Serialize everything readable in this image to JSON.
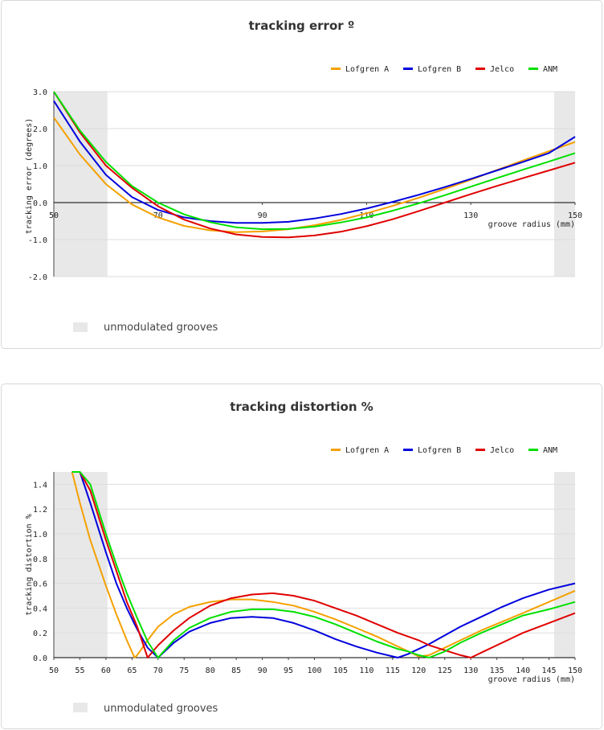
{
  "legend": [
    {
      "label": "Lofgren A",
      "color": "#f5a000"
    },
    {
      "label": "Lofgren B",
      "color": "#0000dd"
    },
    {
      "label": "Jelco",
      "color": "#e00000"
    },
    {
      "label": "ANM",
      "color": "#00e000"
    }
  ],
  "unmodulated_label": "unmodulated grooves",
  "chart_data": [
    {
      "type": "line",
      "title": "tracking error º",
      "xlabel": "groove radius (mm)",
      "ylabel": "tracking error (degrees)",
      "xlim": [
        50,
        150
      ],
      "ylim": [
        -2.0,
        3.0
      ],
      "xticks": [
        50,
        70,
        90,
        110,
        130,
        150
      ],
      "xtick_labels": [
        "50",
        "70",
        "90",
        "110",
        "130",
        "150"
      ],
      "yticks": [
        -2.0,
        -1.0,
        0.0,
        1.0,
        2.0,
        3.0
      ],
      "ytick_labels": [
        "-2.0",
        "-1.0",
        "0.0",
        "1.0",
        "2.0",
        "3.0"
      ],
      "shaded_ranges": [
        [
          50,
          60.3
        ],
        [
          146,
          150
        ]
      ],
      "x": [
        50,
        55,
        60,
        65,
        70,
        75,
        80,
        85,
        90,
        95,
        100,
        105,
        110,
        115,
        120,
        125,
        130,
        135,
        140,
        145,
        150
      ],
      "series": [
        {
          "name": "Lofgren A",
          "color": "#f5a000",
          "values": [
            2.3,
            1.3,
            0.5,
            -0.05,
            -0.4,
            -0.63,
            -0.75,
            -0.8,
            -0.78,
            -0.72,
            -0.61,
            -0.47,
            -0.29,
            -0.09,
            0.13,
            0.37,
            0.62,
            0.88,
            1.14,
            1.39,
            1.64
          ]
        },
        {
          "name": "Lofgren B",
          "color": "#0000dd",
          "values": [
            2.75,
            1.65,
            0.75,
            0.15,
            -0.2,
            -0.4,
            -0.5,
            -0.55,
            -0.55,
            -0.52,
            -0.43,
            -0.31,
            -0.16,
            0.02,
            0.21,
            0.42,
            0.64,
            0.87,
            1.1,
            1.34,
            1.78
          ]
        },
        {
          "name": "Jelco",
          "color": "#e00000",
          "values": [
            3.0,
            1.9,
            1.0,
            0.4,
            -0.1,
            -0.46,
            -0.7,
            -0.86,
            -0.93,
            -0.94,
            -0.89,
            -0.79,
            -0.64,
            -0.45,
            -0.23,
            0.0,
            0.23,
            0.45,
            0.66,
            0.87,
            1.08
          ]
        },
        {
          "name": "ANM",
          "color": "#00e000",
          "values": [
            3.0,
            1.95,
            1.1,
            0.45,
            0.0,
            -0.32,
            -0.53,
            -0.67,
            -0.72,
            -0.71,
            -0.65,
            -0.54,
            -0.4,
            -0.22,
            -0.02,
            0.2,
            0.43,
            0.66,
            0.89,
            1.11,
            1.34
          ]
        }
      ]
    },
    {
      "type": "line",
      "title": "tracking distortion %",
      "xlabel": "groove radius (mm)",
      "ylabel": "tracking distortion %",
      "xlim": [
        50,
        150
      ],
      "ylim": [
        0.0,
        1.5
      ],
      "xticks": [
        50,
        55,
        60,
        65,
        70,
        75,
        80,
        85,
        90,
        95,
        100,
        105,
        110,
        115,
        120,
        125,
        130,
        135,
        140,
        145,
        150
      ],
      "xtick_labels": [
        "50",
        "55",
        "60",
        "65",
        "70",
        "75",
        "80",
        "85",
        "90",
        "95",
        "100",
        "105",
        "110",
        "115",
        "120",
        "125",
        "130",
        "135",
        "140",
        "145",
        "150"
      ],
      "yticks": [
        0.0,
        0.2,
        0.4,
        0.6,
        0.8,
        1.0,
        1.2,
        1.4
      ],
      "ytick_labels": [
        "0.0",
        "0.2",
        "0.4",
        "0.6",
        "0.8",
        "1.0",
        "1.2",
        "1.4"
      ],
      "shaded_ranges": [
        [
          50,
          60.3
        ],
        [
          146,
          150
        ]
      ],
      "x": [
        53.5,
        55,
        57,
        60,
        62,
        64,
        65.5,
        66,
        68,
        70,
        73,
        76,
        80,
        84,
        88,
        92,
        96,
        100,
        104,
        108,
        112,
        116,
        118,
        120,
        122,
        125,
        128,
        130,
        132,
        136,
        140,
        145,
        150
      ],
      "series": [
        {
          "name": "Lofgren A",
          "color": "#f5a000",
          "values": [
            1.5,
            1.25,
            0.95,
            0.58,
            0.35,
            0.14,
            0.0,
            0.02,
            0.14,
            0.25,
            0.35,
            0.41,
            0.45,
            0.47,
            0.47,
            0.45,
            0.42,
            0.37,
            0.31,
            0.24,
            0.17,
            0.09,
            0.05,
            0.01,
            0.02,
            0.08,
            0.14,
            0.18,
            0.22,
            0.29,
            0.36,
            0.45,
            0.54
          ]
        },
        {
          "name": "Lofgren B",
          "color": "#0000dd",
          "values": [
            1.5,
            1.5,
            1.25,
            0.85,
            0.6,
            0.4,
            0.27,
            0.23,
            0.08,
            0.0,
            0.12,
            0.21,
            0.28,
            0.32,
            0.33,
            0.32,
            0.28,
            0.22,
            0.15,
            0.09,
            0.04,
            0.0,
            0.03,
            0.07,
            0.11,
            0.18,
            0.25,
            0.29,
            0.33,
            0.41,
            0.48,
            0.55,
            0.6
          ]
        },
        {
          "name": "Jelco",
          "color": "#e00000",
          "values": [
            1.5,
            1.5,
            1.35,
            0.95,
            0.7,
            0.45,
            0.3,
            0.25,
            0.0,
            0.1,
            0.22,
            0.32,
            0.42,
            0.48,
            0.51,
            0.52,
            0.5,
            0.46,
            0.4,
            0.34,
            0.27,
            0.2,
            0.17,
            0.14,
            0.1,
            0.06,
            0.02,
            0.0,
            0.04,
            0.12,
            0.2,
            0.28,
            0.36
          ]
        },
        {
          "name": "ANM",
          "color": "#00e000",
          "values": [
            1.5,
            1.5,
            1.4,
            1.0,
            0.75,
            0.52,
            0.37,
            0.32,
            0.13,
            0.0,
            0.14,
            0.24,
            0.32,
            0.37,
            0.39,
            0.39,
            0.37,
            0.33,
            0.27,
            0.2,
            0.13,
            0.07,
            0.05,
            0.02,
            0.0,
            0.05,
            0.12,
            0.16,
            0.2,
            0.27,
            0.34,
            0.39,
            0.45
          ]
        }
      ]
    }
  ]
}
